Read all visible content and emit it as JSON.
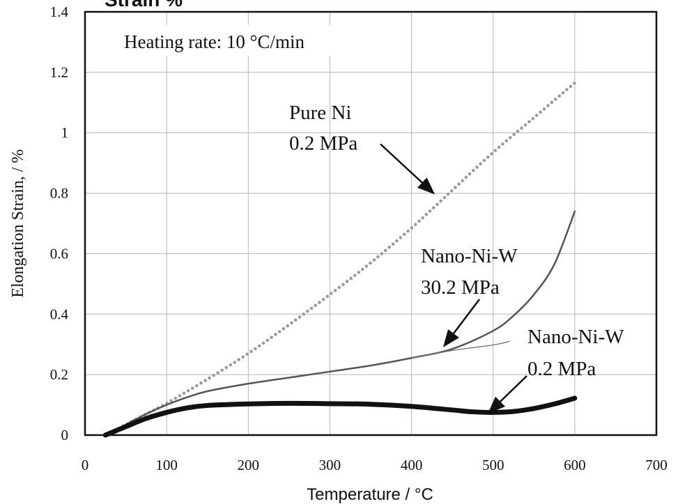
{
  "chart_data": {
    "type": "line",
    "partial_title": "Strain  %",
    "note": "Heating rate: 10 °C/min",
    "xlabel": "Temperature   / °C",
    "ylabel": "Elongation Strain,  / %",
    "xlim": [
      0,
      700
    ],
    "ylim": [
      0,
      1.4
    ],
    "x_ticks": [
      0,
      100,
      200,
      300,
      400,
      500,
      600,
      700
    ],
    "y_ticks": [
      0,
      0.2,
      0.4,
      0.6,
      0.8,
      1,
      1.2,
      1.4
    ],
    "x_tick_labels": [
      "0",
      "100",
      "200",
      "300",
      "400",
      "500",
      "600",
      "700"
    ],
    "y_tick_labels": [
      "0",
      "0.2",
      "0.4",
      "0.6",
      "0.8",
      "1",
      "1.2",
      "1.4"
    ],
    "grid": true,
    "series": [
      {
        "line1": "Pure Ni",
        "line2": "0.2 MPa",
        "style": "dotted",
        "color": "#9a9a9a",
        "x": [
          25,
          50,
          75,
          100,
          150,
          200,
          250,
          300,
          350,
          400,
          450,
          500,
          550,
          600
        ],
        "y": [
          0.0,
          0.035,
          0.07,
          0.105,
          0.185,
          0.27,
          0.365,
          0.465,
          0.57,
          0.685,
          0.81,
          0.935,
          1.05,
          1.165
        ]
      },
      {
        "line1": "Nano-Ni-W",
        "line2": "30.2 MPa",
        "style": "solid",
        "color": "#555555",
        "x": [
          25,
          50,
          75,
          100,
          125,
          150,
          200,
          250,
          300,
          350,
          400,
          450,
          500,
          525,
          550,
          575,
          600
        ],
        "y": [
          0.0,
          0.035,
          0.07,
          0.1,
          0.125,
          0.145,
          0.17,
          0.19,
          0.21,
          0.23,
          0.255,
          0.285,
          0.345,
          0.395,
          0.465,
          0.565,
          0.74
        ]
      },
      {
        "line1": "",
        "line2": "",
        "style": "thin extension",
        "color": "#777777",
        "x": [
          400,
          450,
          500,
          520
        ],
        "y": [
          0.255,
          0.28,
          0.298,
          0.31
        ]
      },
      {
        "line1": "Nano-Ni-W",
        "line2": "0.2 MPa",
        "style": "thick",
        "color": "#111111",
        "x": [
          25,
          50,
          75,
          100,
          125,
          150,
          200,
          250,
          300,
          350,
          400,
          450,
          475,
          500,
          525,
          550,
          575,
          600
        ],
        "y": [
          0.0,
          0.028,
          0.055,
          0.075,
          0.09,
          0.098,
          0.103,
          0.105,
          0.104,
          0.102,
          0.095,
          0.083,
          0.077,
          0.075,
          0.078,
          0.088,
          0.103,
          0.122
        ]
      }
    ],
    "annotations": [
      {
        "series_index": 0,
        "arrow_target": [
          427,
          0.8
        ]
      },
      {
        "series_index": 1,
        "arrow_target": [
          440,
          0.295
        ]
      },
      {
        "series_index": 3,
        "arrow_target": [
          495,
          0.075
        ]
      }
    ]
  }
}
